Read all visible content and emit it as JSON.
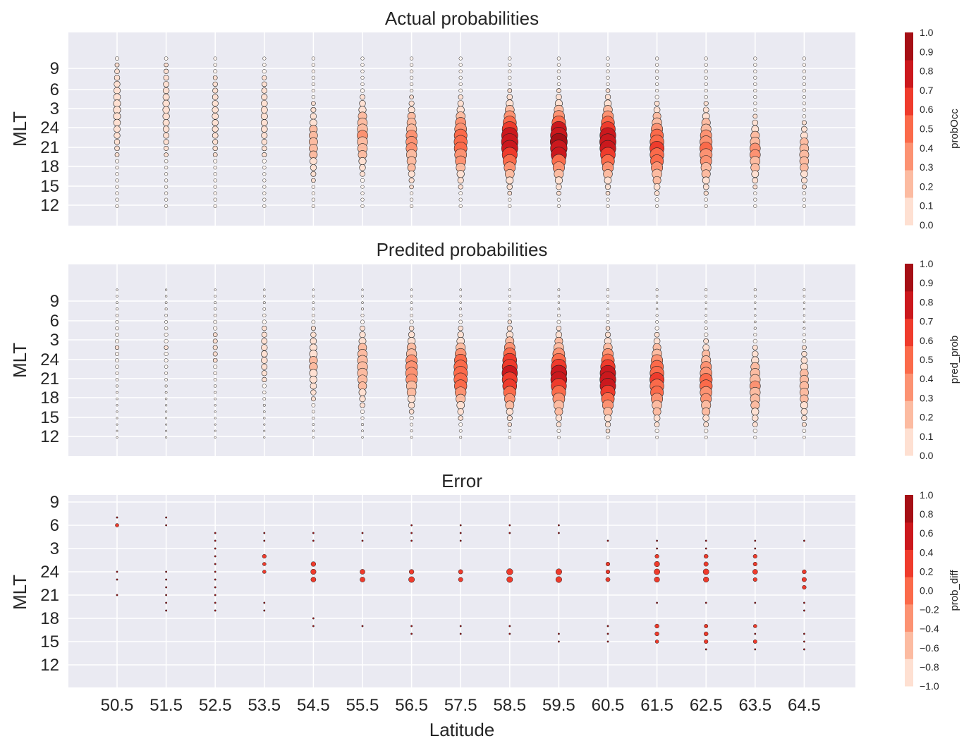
{
  "chart_data": [
    {
      "type": "scatter",
      "title": "Actual probabilities",
      "xlabel": "",
      "ylabel": "MLT",
      "yticks": [
        "9",
        "6",
        "3",
        "24",
        "21",
        "18",
        "15",
        "12"
      ],
      "colorbar": {
        "label": "probOcc",
        "ticks": [
          "1.0",
          "0.9",
          "0.8",
          "0.7",
          "0.6",
          "0.5",
          "0.4",
          "0.3",
          "0.2",
          "0.1",
          "0.0"
        ],
        "colors": [
          "#fee0d2",
          "#fcbba1",
          "#fc9272",
          "#fb6a4a",
          "#ef3b2c",
          "#cb181d",
          "#a50f15"
        ]
      },
      "legend": "none"
    },
    {
      "type": "scatter",
      "title": "Predited probabilities",
      "xlabel": "",
      "ylabel": "MLT",
      "yticks": [
        "9",
        "6",
        "3",
        "24",
        "21",
        "18",
        "15",
        "12"
      ],
      "colorbar": {
        "label": "pred_prob",
        "ticks": [
          "1.0",
          "0.9",
          "0.8",
          "0.7",
          "0.6",
          "0.5",
          "0.4",
          "0.3",
          "0.2",
          "0.1",
          "0.0"
        ],
        "colors": [
          "#fee0d2",
          "#fcbba1",
          "#fc9272",
          "#fb6a4a",
          "#ef3b2c",
          "#cb181d",
          "#a50f15"
        ]
      },
      "legend": "none"
    },
    {
      "type": "scatter",
      "title": "Error",
      "xlabel": "Latitude",
      "ylabel": "MLT",
      "yticks": [
        "9",
        "6",
        "3",
        "24",
        "21",
        "18",
        "15",
        "12"
      ],
      "colorbar": {
        "label": "prob_diff",
        "ticks": [
          "1.0",
          "0.8",
          "0.6",
          "0.4",
          "0.2",
          "0.0",
          "−0.2",
          "−0.4",
          "−0.6",
          "−0.8",
          "−1.0"
        ],
        "colors": [
          "#fee0d2",
          "#fcbba1",
          "#fc9272",
          "#fb6a4a",
          "#ef3b2c",
          "#cb181d",
          "#a50f15"
        ]
      },
      "legend": "none"
    }
  ],
  "x_categories": [
    "50.5",
    "51.5",
    "52.5",
    "53.5",
    "54.5",
    "55.5",
    "56.5",
    "57.5",
    "58.5",
    "59.5",
    "60.5",
    "61.5",
    "62.5",
    "63.5",
    "64.5"
  ],
  "mlt_hours": [
    11,
    10,
    9,
    8,
    7,
    6,
    5,
    4,
    3,
    2,
    1,
    0,
    23,
    22,
    21,
    20,
    19,
    18,
    17,
    16,
    15,
    14,
    13,
    12
  ],
  "peaks": {
    "actual": {
      "center_mlt": [
        3,
        3,
        2,
        2,
        22,
        23,
        22,
        22,
        22,
        22,
        22,
        21,
        21,
        20.5,
        20
      ],
      "peak_value": [
        0.12,
        0.1,
        0.08,
        0.09,
        0.18,
        0.3,
        0.35,
        0.5,
        0.85,
        0.9,
        0.82,
        0.6,
        0.45,
        0.3,
        0.22
      ],
      "spread_hours": [
        4,
        4,
        4,
        4,
        3,
        3,
        3,
        3,
        3,
        3,
        3,
        3,
        3,
        2.5,
        2.5
      ]
    },
    "predicted": {
      "center_mlt": [
        2,
        2,
        2,
        1,
        23.5,
        23,
        22.5,
        22,
        22,
        21.5,
        21,
        21,
        20.5,
        20,
        20
      ],
      "peak_value": [
        0.02,
        0.02,
        0.03,
        0.08,
        0.16,
        0.28,
        0.4,
        0.55,
        0.72,
        0.8,
        0.78,
        0.6,
        0.45,
        0.3,
        0.2
      ],
      "spread_hours": [
        3,
        3,
        3,
        3,
        3,
        3,
        3,
        3,
        3,
        3,
        3,
        3,
        3,
        3,
        3
      ]
    },
    "error_points": [
      [
        [
          6,
          0.03
        ],
        [
          7,
          0.02
        ],
        [
          0,
          0.02
        ],
        [
          23,
          0.02
        ],
        [
          21,
          0.02
        ]
      ],
      [
        [
          6,
          0.02
        ],
        [
          7,
          0.02
        ],
        [
          0,
          0.02
        ],
        [
          23,
          0.02
        ],
        [
          22,
          0.02
        ],
        [
          21,
          0.02
        ],
        [
          20,
          0.02
        ],
        [
          19,
          0.02
        ]
      ],
      [
        [
          5,
          0.02
        ],
        [
          4,
          0.02
        ],
        [
          3,
          0.02
        ],
        [
          2,
          0.02
        ],
        [
          1,
          0.02
        ],
        [
          0,
          0.02
        ],
        [
          23,
          0.02
        ],
        [
          22,
          0.02
        ],
        [
          21,
          0.02
        ],
        [
          20,
          0.02
        ],
        [
          19,
          0.02
        ]
      ],
      [
        [
          5,
          0.02
        ],
        [
          4,
          0.02
        ],
        [
          2,
          0.05
        ],
        [
          1,
          0.03
        ],
        [
          0,
          0.03
        ],
        [
          20,
          0.02
        ],
        [
          19,
          0.02
        ]
      ],
      [
        [
          5,
          0.02
        ],
        [
          4,
          0.02
        ],
        [
          1,
          0.1
        ],
        [
          0,
          0.15
        ],
        [
          23,
          0.12
        ],
        [
          18,
          0.02
        ],
        [
          17,
          0.02
        ]
      ],
      [
        [
          5,
          0.02
        ],
        [
          4,
          0.02
        ],
        [
          0,
          0.12
        ],
        [
          23,
          0.12
        ],
        [
          17,
          0.02
        ]
      ],
      [
        [
          6,
          0.02
        ],
        [
          5,
          0.02
        ],
        [
          4,
          0.02
        ],
        [
          0,
          0.1
        ],
        [
          23,
          0.2
        ],
        [
          17,
          0.02
        ],
        [
          16,
          0.02
        ]
      ],
      [
        [
          6,
          0.02
        ],
        [
          5,
          0.02
        ],
        [
          4,
          0.02
        ],
        [
          0,
          0.08
        ],
        [
          23,
          0.08
        ],
        [
          17,
          0.02
        ],
        [
          16,
          0.02
        ]
      ],
      [
        [
          6,
          0.02
        ],
        [
          5,
          0.02
        ],
        [
          0,
          0.25
        ],
        [
          23,
          0.2
        ],
        [
          17,
          0.02
        ],
        [
          16,
          0.02
        ]
      ],
      [
        [
          6,
          0.02
        ],
        [
          5,
          0.02
        ],
        [
          0,
          0.22
        ],
        [
          23,
          0.22
        ],
        [
          16,
          0.02
        ],
        [
          15,
          0.02
        ]
      ],
      [
        [
          4,
          0.02
        ],
        [
          1,
          0.05
        ],
        [
          0,
          0.05
        ],
        [
          23,
          0.07
        ],
        [
          17,
          0.02
        ],
        [
          16,
          0.02
        ],
        [
          15,
          0.02
        ]
      ],
      [
        [
          4,
          0.02
        ],
        [
          3,
          0.02
        ],
        [
          2,
          0.05
        ],
        [
          1,
          0.15
        ],
        [
          0,
          0.2
        ],
        [
          23,
          0.15
        ],
        [
          20,
          0.02
        ],
        [
          17,
          0.06
        ],
        [
          16,
          0.06
        ],
        [
          15,
          0.03
        ]
      ],
      [
        [
          4,
          0.02
        ],
        [
          3,
          0.02
        ],
        [
          2,
          0.06
        ],
        [
          1,
          0.08
        ],
        [
          0,
          0.2
        ],
        [
          23,
          0.15
        ],
        [
          20,
          0.02
        ],
        [
          17,
          0.04
        ],
        [
          16,
          0.06
        ],
        [
          15,
          0.05
        ],
        [
          14,
          0.02
        ]
      ],
      [
        [
          4,
          0.02
        ],
        [
          3,
          0.02
        ],
        [
          2,
          0.05
        ],
        [
          1,
          0.05
        ],
        [
          0,
          0.12
        ],
        [
          23,
          0.05
        ],
        [
          20,
          0.02
        ],
        [
          17,
          0.03
        ],
        [
          16,
          0.02
        ],
        [
          15,
          0.04
        ],
        [
          14,
          0.02
        ]
      ],
      [
        [
          4,
          0.02
        ],
        [
          0,
          0.06
        ],
        [
          23,
          0.08
        ],
        [
          22,
          0.05
        ],
        [
          20,
          0.02
        ],
        [
          19,
          0.02
        ],
        [
          16,
          0.02
        ],
        [
          15,
          0.02
        ],
        [
          14,
          0.02
        ]
      ]
    ]
  }
}
